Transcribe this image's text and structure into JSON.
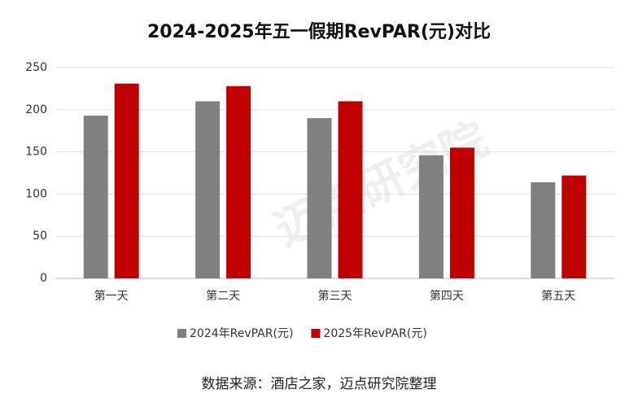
{
  "chart_data": {
    "type": "bar",
    "title": "2024-2025年五一假期RevPAR(元)对比",
    "categories": [
      "第一天",
      "第二天",
      "第三天",
      "第四天",
      "第五天"
    ],
    "series": [
      {
        "name": "2024年RevPAR(元)",
        "color": "#808080",
        "values": [
          193,
          210,
          190,
          146,
          114
        ]
      },
      {
        "name": "2025年RevPAR(元)",
        "color": "#c00000",
        "values": [
          231,
          228,
          210,
          155,
          122
        ]
      }
    ],
    "ylim": [
      0,
      250
    ],
    "yticks": [
      0,
      50,
      100,
      150,
      200,
      250
    ],
    "grid": true,
    "legend": "bottom",
    "source": "数据来源：酒店之家，迈点研究院整理",
    "watermark": "迈点研究院"
  }
}
